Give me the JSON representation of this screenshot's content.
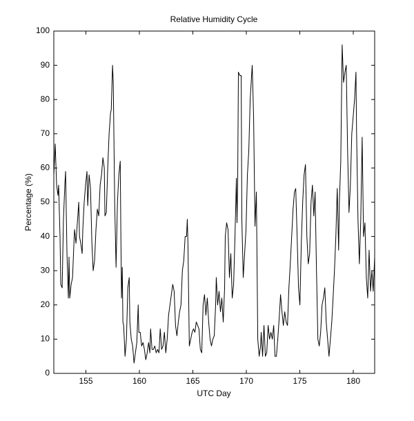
{
  "chart_data": {
    "type": "line",
    "title": "Relative Humidity Cycle",
    "x_label": "UTC Day",
    "y_label": "Percentage (%)",
    "x": [
      152.0,
      152.13,
      152.26,
      152.39,
      152.45,
      152.58,
      152.65,
      152.78,
      152.9,
      153.03,
      153.1,
      153.23,
      153.36,
      153.42,
      153.49,
      153.62,
      153.75,
      153.88,
      153.94,
      154.07,
      154.2,
      154.33,
      154.4,
      154.52,
      154.65,
      154.71,
      154.84,
      154.97,
      155.1,
      155.17,
      155.3,
      155.43,
      155.56,
      155.68,
      155.81,
      155.94,
      156.07,
      156.2,
      156.33,
      156.46,
      156.59,
      156.72,
      156.78,
      156.91,
      157.04,
      157.17,
      157.3,
      157.37,
      157.49,
      157.56,
      157.69,
      157.82,
      157.95,
      158.08,
      158.21,
      158.27,
      158.33,
      158.4,
      158.46,
      158.53,
      158.66,
      158.79,
      158.92,
      159.05,
      159.11,
      159.24,
      159.37,
      159.5,
      159.63,
      159.76,
      159.89,
      159.95,
      160.08,
      160.21,
      160.34,
      160.47,
      160.6,
      160.73,
      160.86,
      160.98,
      161.05,
      161.18,
      161.31,
      161.44,
      161.57,
      161.7,
      161.83,
      161.95,
      162.08,
      162.21,
      162.34,
      162.47,
      162.6,
      162.73,
      162.86,
      162.99,
      163.12,
      163.25,
      163.38,
      163.51,
      163.64,
      163.76,
      163.89,
      164.02,
      164.15,
      164.28,
      164.41,
      164.48,
      164.54,
      164.67,
      164.8,
      164.93,
      165.06,
      165.19,
      165.32,
      165.45,
      165.57,
      165.7,
      165.83,
      165.96,
      166.09,
      166.22,
      166.35,
      166.48,
      166.61,
      166.74,
      166.87,
      167.0,
      167.13,
      167.19,
      167.32,
      167.45,
      167.58,
      167.71,
      167.84,
      167.97,
      168.03,
      168.16,
      168.29,
      168.42,
      168.55,
      168.68,
      168.81,
      168.94,
      169.07,
      169.13,
      169.19,
      169.26,
      169.39,
      169.52,
      169.58,
      169.71,
      169.84,
      169.97,
      170.1,
      170.23,
      170.36,
      170.49,
      170.55,
      170.68,
      170.81,
      170.94,
      171.07,
      171.2,
      171.33,
      171.39,
      171.52,
      171.65,
      171.78,
      171.91,
      172.04,
      172.17,
      172.3,
      172.43,
      172.56,
      172.68,
      172.81,
      172.94,
      173.07,
      173.2,
      173.33,
      173.46,
      173.59,
      173.72,
      173.85,
      173.98,
      174.11,
      174.24,
      174.37,
      174.5,
      174.62,
      174.75,
      174.88,
      175.01,
      175.14,
      175.27,
      175.4,
      175.53,
      175.66,
      175.79,
      175.92,
      176.05,
      176.18,
      176.31,
      176.43,
      176.56,
      176.69,
      176.82,
      176.95,
      177.08,
      177.21,
      177.34,
      177.47,
      177.6,
      177.73,
      177.86,
      177.99,
      178.11,
      178.24,
      178.37,
      178.5,
      178.63,
      178.7,
      178.83,
      178.96,
      179.09,
      179.22,
      179.34,
      179.47,
      179.6,
      179.73,
      179.86,
      179.99,
      180.12,
      180.25,
      180.31,
      180.44,
      180.57,
      180.7,
      180.83,
      180.96,
      181.09,
      181.22,
      181.35,
      181.48,
      181.61,
      181.74,
      181.86,
      182.0
    ],
    "series": [
      {
        "color": "#000000",
        "values": [
          58,
          67,
          55,
          52,
          55,
          40,
          26,
          25,
          45,
          55,
          59,
          35,
          22,
          34,
          22,
          26,
          28,
          38,
          42,
          38,
          44,
          50,
          40,
          38,
          35,
          42,
          50,
          55,
          59,
          49,
          58,
          54,
          38,
          30,
          33,
          42,
          48,
          46,
          55,
          58,
          63,
          60,
          46,
          47,
          60,
          70,
          76,
          77,
          90,
          85,
          50,
          31,
          50,
          58,
          62,
          40,
          22,
          31,
          15,
          14,
          5,
          10,
          25,
          28,
          15,
          10,
          8,
          3,
          6,
          9,
          20,
          12,
          12,
          8,
          9,
          7,
          4,
          6,
          9,
          6,
          13,
          7,
          7,
          8,
          6,
          7,
          6,
          13,
          7,
          8,
          12,
          6,
          10,
          17,
          20,
          23,
          26,
          24,
          14,
          11,
          15,
          18,
          20,
          30,
          33,
          40,
          40,
          45,
          38,
          8,
          10,
          12,
          13,
          12,
          15,
          14,
          13,
          7,
          6,
          20,
          23,
          17,
          22,
          15,
          10,
          8,
          10,
          11,
          20,
          28,
          20,
          24,
          18,
          22,
          15,
          25,
          40,
          44,
          42,
          28,
          35,
          22,
          26,
          40,
          57,
          44,
          55,
          88,
          87,
          87,
          45,
          28,
          35,
          42,
          58,
          65,
          80,
          87,
          90,
          75,
          43,
          53,
          10,
          5,
          8,
          12,
          5,
          14,
          5,
          6,
          14,
          10,
          12,
          10,
          14,
          5,
          5,
          10,
          16,
          23,
          18,
          14,
          18,
          15,
          14,
          25,
          32,
          40,
          48,
          53,
          54,
          40,
          25,
          20,
          38,
          50,
          58,
          61,
          40,
          32,
          35,
          50,
          55,
          46,
          53,
          30,
          10,
          8,
          12,
          20,
          22,
          25,
          15,
          10,
          5,
          10,
          15,
          22,
          30,
          40,
          54,
          36,
          50,
          62,
          96,
          85,
          88,
          90,
          65,
          47,
          55,
          70,
          75,
          80,
          88,
          70,
          45,
          32,
          45,
          69,
          40,
          44,
          28,
          22,
          36,
          24,
          30,
          24,
          34
        ]
      }
    ],
    "xlim": [
      152,
      182
    ],
    "ylim": [
      0,
      100
    ],
    "xticks": [
      155,
      160,
      165,
      170,
      175,
      180
    ],
    "yticks": [
      0,
      10,
      20,
      30,
      40,
      50,
      60,
      70,
      80,
      90,
      100
    ]
  }
}
